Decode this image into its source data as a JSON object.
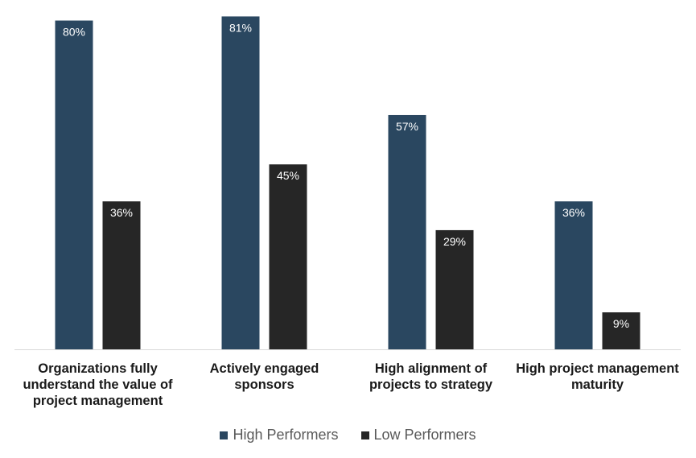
{
  "chart_data": {
    "type": "bar",
    "categories": [
      "Organizations fully understand the value of project management",
      "Actively engaged sponsors",
      "High alignment of projects to strategy",
      "High project management maturity"
    ],
    "series": [
      {
        "name": "High Performers",
        "values": [
          80,
          81,
          57,
          36
        ],
        "labels": [
          "80%",
          "81%",
          "57%",
          "36%"
        ],
        "color": "#2A4760"
      },
      {
        "name": "Low Performers",
        "values": [
          36,
          45,
          29,
          9
        ],
        "labels": [
          "36%",
          "45%",
          "29%",
          "9%"
        ],
        "color": "#262626"
      }
    ],
    "ylim": [
      0,
      85
    ],
    "grid": false,
    "legend": "bottom",
    "xlabel": "",
    "ylabel": ""
  }
}
